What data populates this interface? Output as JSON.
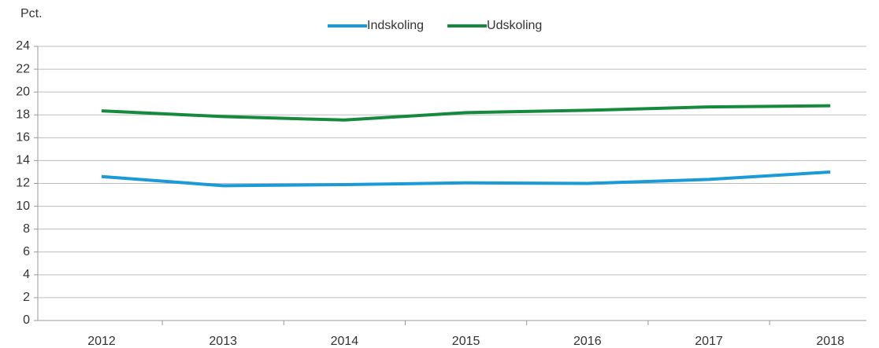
{
  "chart_data": {
    "type": "line",
    "ylabel": "Pct.",
    "categories": [
      "2012",
      "2013",
      "2014",
      "2015",
      "2016",
      "2017",
      "2018"
    ],
    "series": [
      {
        "name": "Indskoling",
        "color": "#1a9ad6",
        "values": [
          12.6,
          11.8,
          11.9,
          12.05,
          12.0,
          12.35,
          13.0
        ]
      },
      {
        "name": "Udskoling",
        "color": "#168a3c",
        "values": [
          18.35,
          17.85,
          17.55,
          18.2,
          18.4,
          18.7,
          18.8
        ]
      }
    ],
    "ylim": [
      0,
      24
    ],
    "yticks": [
      0,
      2,
      4,
      6,
      8,
      10,
      12,
      14,
      16,
      18,
      20,
      22,
      24
    ],
    "grid": true,
    "legend": "top"
  }
}
